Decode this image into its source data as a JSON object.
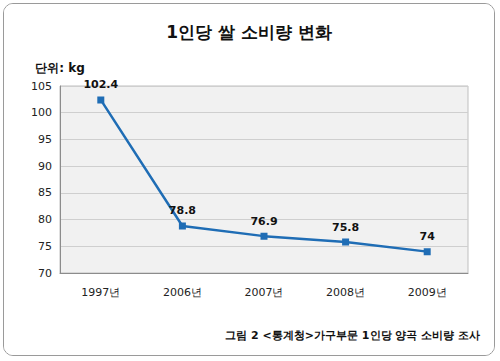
{
  "chart_data": {
    "type": "line",
    "title": "1인당 쌀 소비량 변화",
    "ylabel": "단위: kg",
    "caption": "그림 2 <통계청>가구부문 1인당 양곡 소비량 조사",
    "categories": [
      "1997년",
      "2006년",
      "2007년",
      "2008년",
      "2009년"
    ],
    "values": [
      102.4,
      78.8,
      76.9,
      75.8,
      74
    ],
    "color": "#1f6db5",
    "marker": "square",
    "ylim": [
      70,
      105
    ],
    "yticks": [
      70,
      75,
      80,
      85,
      90,
      95,
      100,
      105
    ],
    "grid": true,
    "data_labels": true
  }
}
